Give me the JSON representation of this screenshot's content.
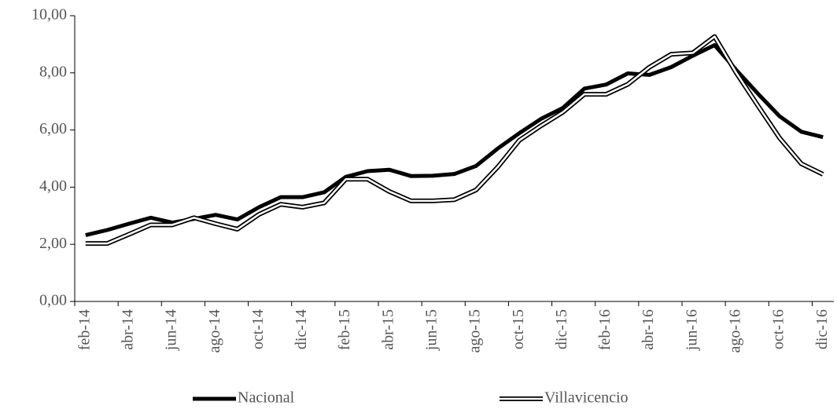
{
  "chart_data": {
    "type": "line",
    "categories": [
      "feb-14",
      null,
      "abr-14",
      null,
      "jun-14",
      null,
      "ago-14",
      null,
      "oct-14",
      null,
      "dic-14",
      null,
      "feb-15",
      null,
      "abr-15",
      null,
      "jun-15",
      null,
      "ago-15",
      null,
      "oct-15",
      null,
      "dic-15",
      null,
      "feb-16",
      null,
      "abr-16",
      null,
      "jun-16",
      null,
      "ago-16",
      null,
      "oct-16",
      null,
      "dic-16"
    ],
    "series": [
      {
        "name": "Nacional",
        "color": "#000000",
        "style": "solid",
        "values": [
          2.32,
          2.5,
          2.72,
          2.93,
          2.76,
          2.89,
          3.03,
          2.87,
          3.3,
          3.65,
          3.65,
          3.82,
          4.36,
          4.56,
          4.61,
          4.39,
          4.4,
          4.46,
          4.74,
          5.35,
          5.89,
          6.39,
          6.77,
          7.45,
          7.59,
          7.98,
          7.93,
          8.2,
          8.6,
          8.97,
          8.1,
          7.27,
          6.48,
          5.94,
          5.75
        ]
      },
      {
        "name": "Villavicencio",
        "color": "#000000",
        "style": "double",
        "values": [
          2.03,
          2.03,
          2.35,
          2.68,
          2.68,
          2.93,
          2.72,
          2.53,
          3.05,
          3.4,
          3.3,
          3.45,
          4.28,
          4.28,
          3.85,
          3.52,
          3.52,
          3.56,
          3.9,
          4.7,
          5.64,
          6.15,
          6.62,
          7.25,
          7.25,
          7.6,
          8.2,
          8.65,
          8.7,
          9.27,
          8.0,
          6.85,
          5.72,
          4.82,
          4.45
        ]
      }
    ],
    "ylim": [
      0,
      10
    ],
    "yticks": [
      {
        "value": 0,
        "label": "0,00"
      },
      {
        "value": 2,
        "label": "2,00"
      },
      {
        "value": 4,
        "label": "4,00"
      },
      {
        "value": 6,
        "label": "6,00"
      },
      {
        "value": 8,
        "label": "8,00"
      },
      {
        "value": 10,
        "label": "10,00"
      }
    ],
    "grid": false
  }
}
